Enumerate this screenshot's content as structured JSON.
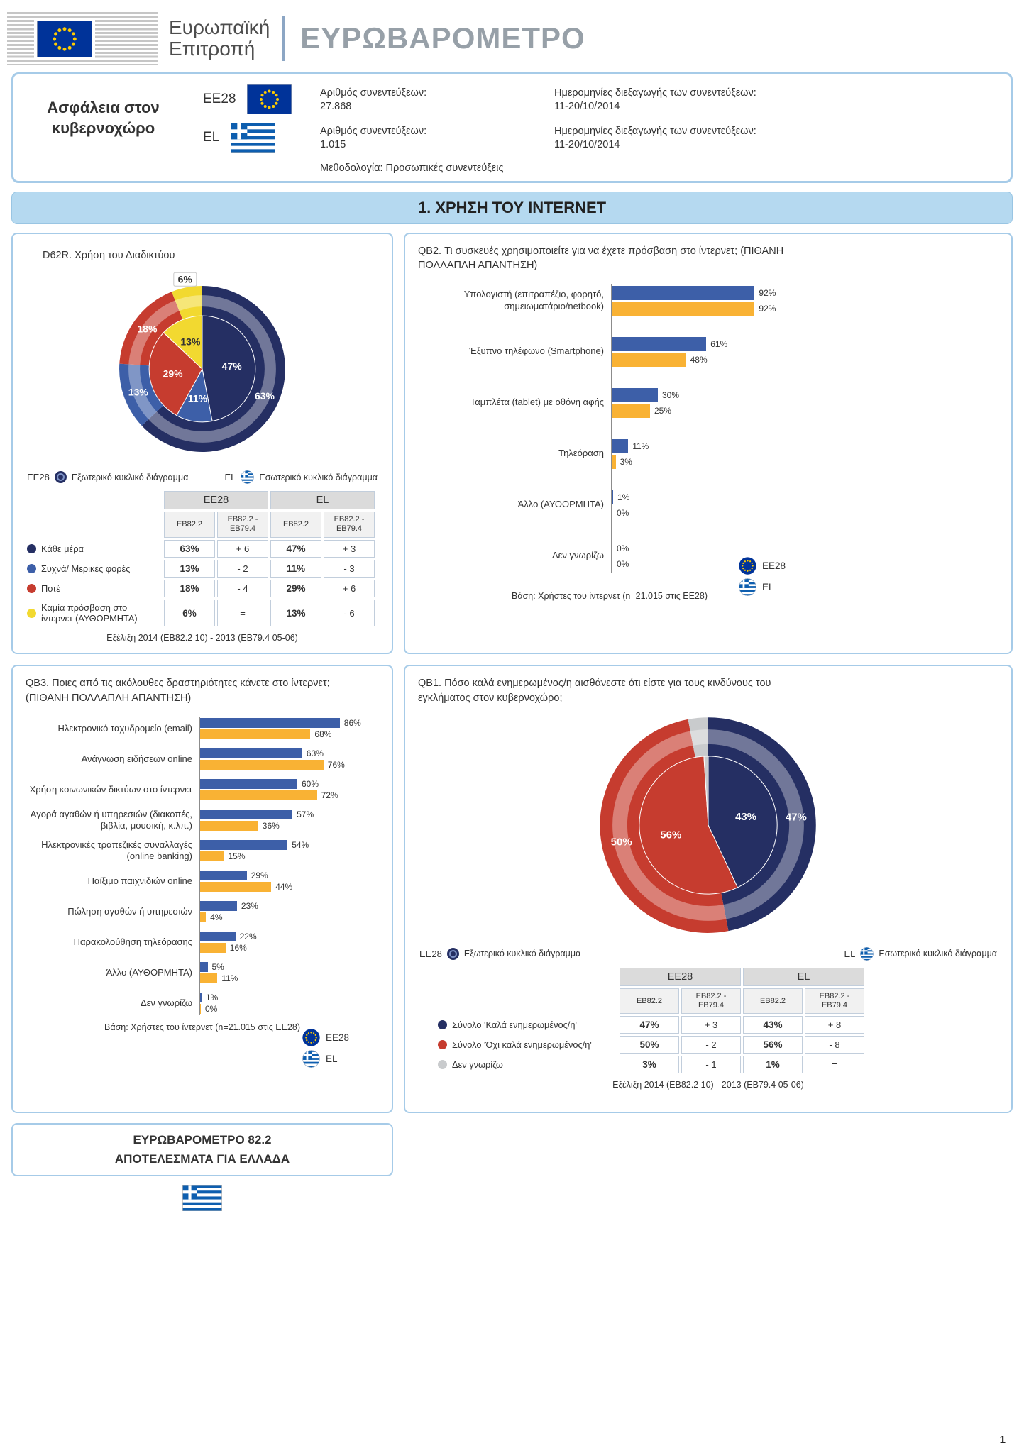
{
  "header": {
    "commission_line1": "Ευρωπαϊκή",
    "commission_line2": "Επιτροπή",
    "title": "ΕΥΡΩΒΑΡΟΜΕΤΡΟ"
  },
  "info_box": {
    "survey_title": "Ασφάλεια στον κυβερνοχώρο",
    "entries": [
      {
        "code": "EE28",
        "interviews_label": "Αριθμός συνεντεύξεων:",
        "interviews": "27.868",
        "dates_label": "Ημερομηνίες διεξαγωγής των συνεντεύξεων:",
        "dates": "11-20/10/2014"
      },
      {
        "code": "EL",
        "interviews_label": "Αριθμός συνεντεύξεων:",
        "interviews": "1.015",
        "dates_label": "Ημερομηνίες διεξαγωγής των συνεντεύξεων:",
        "dates": "11-20/10/2014"
      }
    ],
    "methodology": "Μεθοδολογία: Προσωπικές συνεντεύξεις"
  },
  "section": {
    "title": "1. ΧΡΗΣΗ ΤΟΥ INTERNET"
  },
  "pie_legend": {
    "outer": "Εξωτερικό κυκλικό διάγραμμα",
    "inner": "Εσωτερικό κυκλικό διάγραμμα"
  },
  "footer_box": {
    "line1": "ΕΥΡΩΒΑΡΟΜΕΤΡΟ 82.2",
    "line2": "ΑΠΟΤΕΛΕΣΜΑΤΑ ΓΙΑ ΕΛΛΑΔΑ"
  },
  "page_number": "1",
  "chart_data": [
    {
      "id": "D62R",
      "type": "pie",
      "title": "D62R. Χρήση του Διαδικτύου",
      "outer_series": "EE28",
      "inner_series": "EL",
      "categories": [
        "Κάθε μέρα",
        "Συχνά/ Μερικές φορές",
        "Ποτέ",
        "Καμία πρόσβαση στο ίντερνετ (ΑΥΘΟΡΜΗΤΑ)"
      ],
      "colors": [
        "#252F63",
        "#3D5FA8",
        "#C63C2F",
        "#F2D930"
      ],
      "outer_values": [
        63,
        13,
        18,
        6
      ],
      "inner_values": [
        47,
        11,
        29,
        13
      ],
      "label_text_colors": [
        "#FFFFFF",
        "#FFFFFF",
        "#FFFFFF",
        "#333333"
      ],
      "boxed_outer": [
        3
      ],
      "table": {
        "group_headers": [
          "EE28",
          "EL"
        ],
        "sub_headers": [
          "EB82.2",
          "EB82.2 - EB79.4",
          "EB82.2",
          "EB82.2 - EB79.4"
        ],
        "rows": [
          {
            "label": "Κάθε μέρα",
            "values": [
              "63%",
              "+ 6",
              "47%",
              "+ 3"
            ]
          },
          {
            "label": "Συχνά/ Μερικές φορές",
            "values": [
              "13%",
              "- 2",
              "11%",
              "- 3"
            ]
          },
          {
            "label": "Ποτέ",
            "values": [
              "18%",
              "- 4",
              "29%",
              "+ 6"
            ]
          },
          {
            "label": "Καμία πρόσβαση στο ίντερνετ (ΑΥΘΟΡΜΗΤΑ)",
            "values": [
              "6%",
              "=",
              "13%",
              "- 6"
            ]
          }
        ]
      },
      "footnote": "Εξέλιξη 2014 (EB82.2 10) - 2013 (EB79.4 05-06)"
    },
    {
      "id": "QB2",
      "type": "bar",
      "title": "QB2. Τι συσκευές χρησιμοποιείτε για να έχετε πρόσβαση στο ίντερνετ; (ΠΙΘΑΝΗ ΠΟΛΛΑΠΛΗ ΑΠΑΝΤΗΣΗ)",
      "categories": [
        "Υπολογιστή (επιτραπέζιο, φορητό, σημειωματάριο/netbook)",
        "Έξυπνο τηλέφωνο (Smartphone)",
        "Ταμπλέτα (tablet) με οθόνη αφής",
        "Τηλεόραση",
        "Άλλο (ΑΥΘΟΡΜΗΤΑ)",
        "Δεν γνωρίζω"
      ],
      "series": [
        {
          "name": "EE28",
          "color": "#3D5FA8",
          "values": [
            92,
            61,
            30,
            11,
            1,
            0
          ]
        },
        {
          "name": "EL",
          "color": "#F9B234",
          "values": [
            92,
            48,
            25,
            3,
            0,
            0
          ]
        }
      ],
      "xlim": [
        0,
        100
      ],
      "base": "Βάση: Χρήστες του ίντερνετ (n=21.015 στις EE28)"
    },
    {
      "id": "QB3",
      "type": "bar",
      "title": "QB3. Ποιες από τις ακόλουθες δραστηριότητες κάνετε στο ίντερνετ; (ΠΙΘΑΝΗ ΠΟΛΛΑΠΛΗ ΑΠΑΝΤΗΣΗ)",
      "categories": [
        "Ηλεκτρονικό ταχυδρομείο (email)",
        "Ανάγνωση ειδήσεων online",
        "Χρήση κοινωνικών δικτύων στο ίντερνετ",
        "Αγορά αγαθών ή υπηρεσιών (διακοπές, βιβλία, μουσική, κ.λπ.)",
        "Ηλεκτρονικές τραπεζικές συναλλαγές (online banking)",
        "Παίξιμο παιχνιδιών online",
        "Πώληση αγαθών ή υπηρεσιών",
        "Παρακολούθηση τηλεόρασης",
        "Άλλο (ΑΥΘΟΡΜΗΤΑ)",
        "Δεν γνωρίζω"
      ],
      "series": [
        {
          "name": "EE28",
          "color": "#3D5FA8",
          "values": [
            86,
            63,
            60,
            57,
            54,
            29,
            23,
            22,
            5,
            1
          ]
        },
        {
          "name": "EL",
          "color": "#F9B234",
          "values": [
            68,
            76,
            72,
            36,
            15,
            44,
            4,
            16,
            11,
            0
          ]
        }
      ],
      "xlim": [
        0,
        100
      ],
      "base": "Βάση: Χρήστες του ίντερνετ (n=21.015 στις EE28)"
    },
    {
      "id": "QB1",
      "type": "pie",
      "title": "QB1. Πόσο καλά ενημερωμένος/η αισθάνεστε ότι είστε για τους κινδύνους του εγκλήματος στον κυβερνοχώρο;",
      "outer_series": "EE28",
      "inner_series": "EL",
      "categories": [
        "Σύνολο 'Καλά ενημερωμένος/η'",
        "Σύνολο 'Όχι καλά ενημερωμένος/η'",
        "Δεν γνωρίζω"
      ],
      "colors": [
        "#252F63",
        "#C63C2F",
        "#C9CBCD"
      ],
      "outer_values": [
        47,
        50,
        3
      ],
      "inner_values": [
        43,
        56,
        1
      ],
      "label_text_colors": [
        "#FFFFFF",
        "#FFFFFF",
        "#333333"
      ],
      "hide_labels": [
        2
      ],
      "table": {
        "group_headers": [
          "EE28",
          "EL"
        ],
        "sub_headers": [
          "EB82.2",
          "EB82.2 - EB79.4",
          "EB82.2",
          "EB82.2 - EB79.4"
        ],
        "rows": [
          {
            "label": "Σύνολο 'Καλά ενημερωμένος/η'",
            "values": [
              "47%",
              "+ 3",
              "43%",
              "+ 8"
            ]
          },
          {
            "label": "Σύνολο 'Όχι καλά ενημερωμένος/η'",
            "values": [
              "50%",
              "- 2",
              "56%",
              "- 8"
            ]
          },
          {
            "label": "Δεν γνωρίζω",
            "values": [
              "3%",
              "- 1",
              "1%",
              "="
            ]
          }
        ]
      },
      "footnote": "Εξέλιξη 2014 (EB82.2 10) - 2013 (EB79.4 05-06)"
    }
  ]
}
